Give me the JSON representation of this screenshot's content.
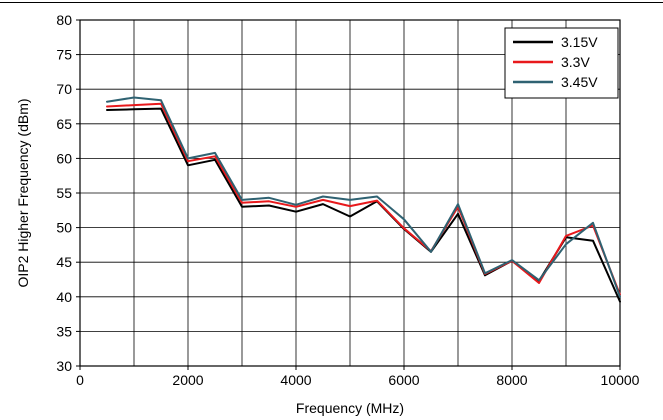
{
  "chart_data": {
    "type": "line",
    "title": "",
    "xlabel": "Frequency (MHz)",
    "ylabel": "OIP2 Higher Frequency (dBm)",
    "xlim": [
      0,
      10000
    ],
    "ylim": [
      30,
      80
    ],
    "xticks": [
      0,
      2000,
      4000,
      6000,
      8000,
      10000
    ],
    "yticks": [
      30,
      35,
      40,
      45,
      50,
      55,
      60,
      65,
      70,
      75,
      80
    ],
    "x_minor_step": 1000,
    "grid": true,
    "legend_position": "top-right",
    "x": [
      500,
      1000,
      1500,
      2000,
      2500,
      3000,
      3500,
      4000,
      4500,
      5000,
      5500,
      6000,
      6500,
      7000,
      7500,
      8000,
      8500,
      9000,
      9500,
      10000
    ],
    "series": [
      {
        "name": "3.15V",
        "color": "#000000",
        "values": [
          67.0,
          67.1,
          67.2,
          59.0,
          59.8,
          53.0,
          53.2,
          52.3,
          53.4,
          51.6,
          53.8,
          49.8,
          46.5,
          52.0,
          43.1,
          45.2,
          42.3,
          48.6,
          48.1,
          39.3
        ]
      },
      {
        "name": "3.3V",
        "color": "#e8191c",
        "values": [
          67.5,
          67.7,
          67.9,
          59.6,
          60.3,
          53.6,
          53.8,
          53.0,
          54.0,
          53.1,
          53.9,
          49.9,
          46.6,
          53.0,
          43.3,
          45.2,
          42.0,
          48.8,
          50.3,
          40.3
        ]
      },
      {
        "name": "3.45V",
        "color": "#2f6272",
        "values": [
          68.2,
          68.8,
          68.4,
          60.0,
          60.8,
          54.0,
          54.3,
          53.3,
          54.5,
          54.0,
          54.5,
          51.2,
          46.5,
          53.4,
          43.4,
          45.3,
          42.4,
          47.6,
          50.7,
          40.0
        ]
      }
    ]
  }
}
